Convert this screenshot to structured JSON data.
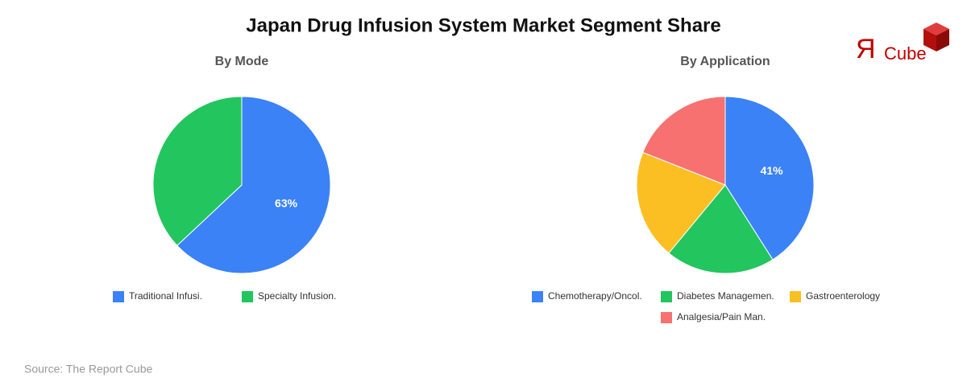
{
  "title": "Japan Drug Infusion System Market Segment Share",
  "logo": {
    "mark": "Я",
    "text": "Cube"
  },
  "source": "Source: The Report Cube",
  "chart_data": [
    {
      "type": "pie",
      "title": "By Mode",
      "categories": [
        "Traditional Infusi.",
        "Specialty Infusion."
      ],
      "values": [
        63,
        37
      ],
      "value_labels": [
        "63%",
        null
      ],
      "colors": [
        "#3b82f6",
        "#22c55e"
      ]
    },
    {
      "type": "pie",
      "title": "By Application",
      "categories": [
        "Chemotherapy/Oncol.",
        "Diabetes Managemen.",
        "Gastroenterology",
        "Analgesia/Pain Man."
      ],
      "values": [
        41,
        20,
        20,
        19
      ],
      "value_labels": [
        "41%",
        null,
        null,
        null
      ],
      "colors": [
        "#3b82f6",
        "#22c55e",
        "#fbbf24",
        "#f87171"
      ]
    }
  ]
}
